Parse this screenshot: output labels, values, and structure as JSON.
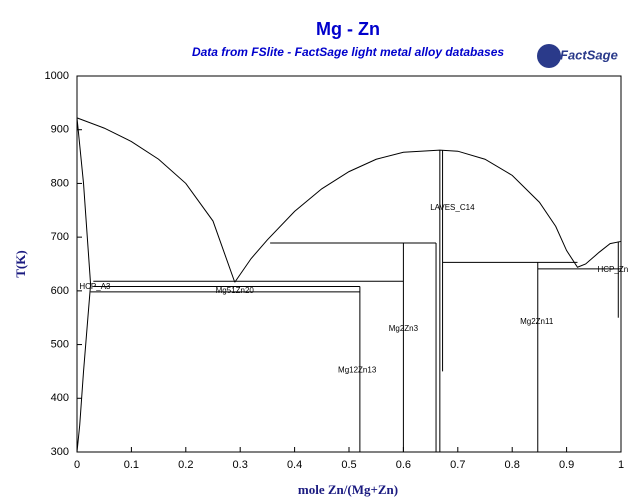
{
  "chart_data": {
    "type": "line",
    "title": "Mg - Zn",
    "subtitle": "Data from FSlite - FactSage light metal alloy databases",
    "logo": "FactSage",
    "x_label": "mole Zn/(Mg+Zn)",
    "y_label": "T(K)",
    "xlim": [
      0,
      1
    ],
    "ylim": [
      300,
      1000
    ],
    "xticks": [
      0,
      0.1,
      0.2,
      0.3,
      0.4,
      0.5,
      0.6,
      0.7,
      0.8,
      0.9,
      1
    ],
    "yticks": [
      300,
      400,
      500,
      600,
      700,
      800,
      900,
      1000
    ],
    "series": [
      {
        "color": "#000000",
        "x": [
          0,
          0.05,
          0.1,
          0.15,
          0.2,
          0.25,
          0.29
        ],
        "values": [
          922,
          903,
          878,
          845,
          800,
          730,
          616
        ]
      },
      {
        "color": "#000000",
        "x": [
          0.29,
          0.32,
          0.35,
          0.4,
          0.45,
          0.5,
          0.55,
          0.6,
          0.667,
          0.7,
          0.75,
          0.8,
          0.85,
          0.88,
          0.9,
          0.92,
          0.935,
          0.96,
          0.98,
          1.0
        ],
        "values": [
          616,
          660,
          695,
          748,
          790,
          822,
          845,
          858,
          862,
          860,
          845,
          815,
          765,
          720,
          675,
          644,
          650,
          672,
          688,
          692
        ]
      },
      {
        "color": "#000000",
        "x": [
          0,
          0.012,
          0.025
        ],
        "values": [
          922,
          800,
          612
        ]
      },
      {
        "color": "#000000",
        "x": [
          0.025,
          0.02,
          0.012,
          0.005,
          0
        ],
        "values": [
          612,
          550,
          450,
          350,
          300
        ]
      },
      {
        "color": "#000000",
        "x": [
          0.03,
          0.6
        ],
        "values": [
          618,
          618
        ]
      },
      {
        "color": "#000000",
        "x": [
          0.03,
          0.52
        ],
        "values": [
          608,
          608
        ]
      },
      {
        "color": "#000000",
        "x": [
          0.025,
          0.52
        ],
        "values": [
          598,
          598
        ]
      },
      {
        "color": "#000000",
        "x": [
          0.355,
          0.66
        ],
        "values": [
          689,
          689
        ]
      },
      {
        "color": "#000000",
        "x": [
          0.672,
          0.92
        ],
        "values": [
          653,
          653
        ]
      },
      {
        "color": "#000000",
        "x": [
          0.847,
          1.0
        ],
        "values": [
          641,
          641
        ]
      },
      {
        "color": "#000000",
        "x": [
          0.52,
          0.52
        ],
        "values": [
          300,
          608
        ]
      },
      {
        "color": "#000000",
        "x": [
          0.6,
          0.6
        ],
        "values": [
          300,
          689
        ]
      },
      {
        "color": "#000000",
        "x": [
          0.66,
          0.66
        ],
        "values": [
          300,
          689
        ]
      },
      {
        "color": "#000000",
        "x": [
          0.667,
          0.667
        ],
        "values": [
          300,
          862
        ]
      },
      {
        "color": "#000000",
        "x": [
          0.672,
          0.672
        ],
        "values": [
          450,
          862
        ]
      },
      {
        "color": "#000000",
        "x": [
          0.847,
          0.847
        ],
        "values": [
          300,
          653
        ]
      },
      {
        "color": "#000000",
        "x": [
          0.995,
          0.995
        ],
        "values": [
          550,
          692
        ]
      }
    ],
    "annotations": [
      {
        "text": "HCP_A3",
        "x": 0.033,
        "y": 607
      },
      {
        "text": "Mg51Zn20",
        "x": 0.29,
        "y": 600
      },
      {
        "text": "Mg12Zn13",
        "x": 0.515,
        "y": 452
      },
      {
        "text": "Mg2Zn3",
        "x": 0.6,
        "y": 529
      },
      {
        "text": "LAVES_C14",
        "x": 0.69,
        "y": 754
      },
      {
        "text": "Mg2Zn11",
        "x": 0.845,
        "y": 542
      },
      {
        "text": "HCP_Zn",
        "x": 0.985,
        "y": 639
      }
    ]
  }
}
